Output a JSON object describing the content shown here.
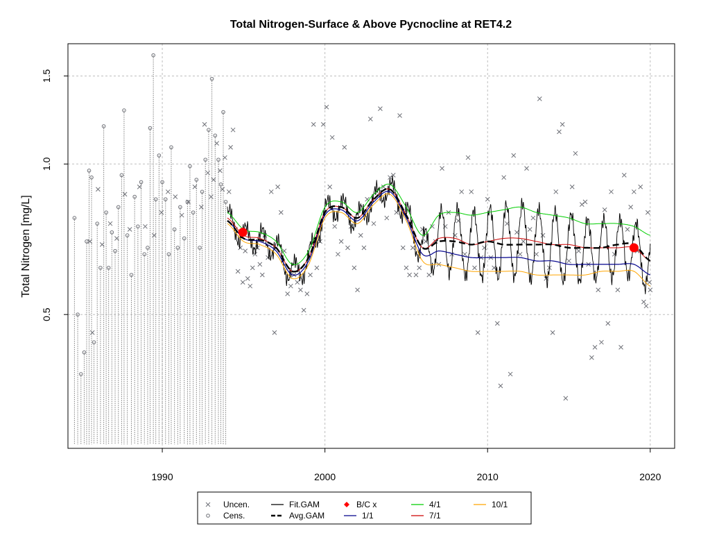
{
  "chart_data": {
    "type": "scatter",
    "title": "Total Nitrogen-Surface & Above Pycnocline at RET4.2",
    "ylabel": "Total Nitrogen [mg/L]",
    "xlabel": "",
    "y_scale": "log",
    "xlim": [
      1984.2,
      2021.5
    ],
    "ylim": [
      0.27,
      1.74
    ],
    "x_ticks": [
      1990,
      2000,
      2010,
      2020
    ],
    "x_tick_labels": [
      "1990",
      "2000",
      "2010",
      "2020"
    ],
    "y_ticks": [
      0.5,
      1.0,
      1.5
    ],
    "y_tick_labels": [
      "0.5",
      "1.0",
      "1.5"
    ],
    "grid": true,
    "legend": {
      "placement": "bottom",
      "entries": [
        {
          "label": "Uncen.",
          "symbol": "x",
          "color": "#6e7077"
        },
        {
          "label": "Cens.",
          "symbol": "o",
          "color": "#6e7077"
        },
        {
          "label": "Fit.GAM",
          "symbol": "line",
          "color": "#000000"
        },
        {
          "label": "Avg.GAM",
          "symbol": "dash",
          "color": "#000000"
        },
        {
          "label": "B/C x",
          "symbol": "diamond",
          "color": "#ff0000"
        },
        {
          "label": "1/1",
          "symbol": "line",
          "color": "#00008b"
        },
        {
          "label": "4/1",
          "symbol": "line",
          "color": "#00cd00"
        },
        {
          "label": "7/1",
          "symbol": "line",
          "color": "#cd0000"
        },
        {
          "label": "10/1",
          "symbol": "line",
          "color": "#ffa500"
        }
      ]
    },
    "colors": {
      "points": "#6e7077",
      "fit_gam": "#000000",
      "avg_gam": "#000000",
      "bc_points": "#ff0000",
      "s_1_1": "#00008b",
      "s_4_1": "#00cd00",
      "s_7_1": "#cd0000",
      "s_10_1": "#ffa500",
      "grid": "#bdbdbd"
    },
    "censored": {
      "lower": 0.275,
      "points": [
        [
          1984.6,
          0.78
        ],
        [
          1984.8,
          0.5
        ],
        [
          1985.0,
          0.38
        ],
        [
          1985.2,
          0.42
        ],
        [
          1985.35,
          0.7
        ],
        [
          1985.5,
          0.97
        ],
        [
          1985.65,
          0.94
        ],
        [
          1985.8,
          0.44
        ],
        [
          1986.0,
          0.76
        ],
        [
          1986.2,
          0.62
        ],
        [
          1986.4,
          1.19
        ],
        [
          1986.55,
          0.8
        ],
        [
          1986.7,
          0.62
        ],
        [
          1986.9,
          0.73
        ],
        [
          1987.1,
          0.67
        ],
        [
          1987.3,
          0.82
        ],
        [
          1987.5,
          0.95
        ],
        [
          1987.65,
          1.28
        ],
        [
          1987.85,
          0.72
        ],
        [
          1988.1,
          0.6
        ],
        [
          1988.3,
          0.86
        ],
        [
          1988.5,
          0.75
        ],
        [
          1988.7,
          0.92
        ],
        [
          1988.9,
          0.66
        ],
        [
          1989.1,
          0.68
        ],
        [
          1989.25,
          1.18
        ],
        [
          1989.45,
          1.65
        ],
        [
          1989.6,
          0.85
        ],
        [
          1989.8,
          1.04
        ],
        [
          1990.0,
          0.92
        ],
        [
          1990.2,
          0.85
        ],
        [
          1990.4,
          0.66
        ],
        [
          1990.55,
          1.08
        ],
        [
          1990.75,
          0.74
        ],
        [
          1990.95,
          0.68
        ],
        [
          1991.1,
          0.82
        ],
        [
          1991.35,
          0.71
        ],
        [
          1991.55,
          0.84
        ],
        [
          1991.7,
          0.99
        ],
        [
          1991.9,
          0.8
        ],
        [
          1992.1,
          0.93
        ],
        [
          1992.3,
          0.68
        ],
        [
          1992.45,
          0.88
        ],
        [
          1992.65,
          1.02
        ],
        [
          1992.85,
          1.17
        ],
        [
          1993.05,
          1.48
        ],
        [
          1993.25,
          1.14
        ],
        [
          1993.45,
          1.02
        ],
        [
          1993.6,
          0.91
        ],
        [
          1993.75,
          1.27
        ],
        [
          1993.9,
          0.84
        ]
      ]
    },
    "uncensored": [
      [
        1985.55,
        0.7
      ],
      [
        1985.7,
        0.46
      ],
      [
        1986.05,
        0.89
      ],
      [
        1986.3,
        0.69
      ],
      [
        1986.8,
        0.76
      ],
      [
        1987.2,
        0.71
      ],
      [
        1987.7,
        0.87
      ],
      [
        1988.0,
        0.74
      ],
      [
        1988.6,
        0.9
      ],
      [
        1988.95,
        0.75
      ],
      [
        1989.5,
        0.72
      ],
      [
        1989.95,
        0.8
      ],
      [
        1990.35,
        0.88
      ],
      [
        1990.8,
        0.86
      ],
      [
        1991.2,
        0.79
      ],
      [
        1991.6,
        0.84
      ],
      [
        1992.0,
        0.9
      ],
      [
        1992.4,
        0.82
      ],
      [
        1992.6,
        1.2
      ],
      [
        1992.8,
        0.96
      ],
      [
        1993.0,
        0.86
      ],
      [
        1993.15,
        0.93
      ],
      [
        1993.35,
        1.1
      ],
      [
        1993.55,
        0.97
      ],
      [
        1993.7,
        0.89
      ],
      [
        1993.85,
        1.03
      ],
      [
        1994.1,
        0.88
      ],
      [
        1994.2,
        1.08
      ],
      [
        1994.35,
        1.17
      ],
      [
        1994.5,
        0.74
      ],
      [
        1994.65,
        0.61
      ],
      [
        1994.8,
        0.68
      ],
      [
        1994.95,
        0.58
      ],
      [
        1995.1,
        0.67
      ],
      [
        1995.25,
        0.59
      ],
      [
        1995.4,
        0.57
      ],
      [
        1995.55,
        0.62
      ],
      [
        1995.7,
        0.66
      ],
      [
        1995.85,
        0.68
      ],
      [
        1996.0,
        0.63
      ],
      [
        1996.15,
        0.6
      ],
      [
        1996.3,
        0.72
      ],
      [
        1996.5,
        0.65
      ],
      [
        1996.7,
        0.88
      ],
      [
        1996.9,
        0.46
      ],
      [
        1997.1,
        0.9
      ],
      [
        1997.3,
        0.8
      ],
      [
        1997.5,
        0.67
      ],
      [
        1997.7,
        0.55
      ],
      [
        1997.9,
        0.57
      ],
      [
        1998.1,
        0.6
      ],
      [
        1998.3,
        0.58
      ],
      [
        1998.5,
        0.56
      ],
      [
        1998.7,
        0.51
      ],
      [
        1998.9,
        0.55
      ],
      [
        1999.1,
        0.6
      ],
      [
        1999.3,
        1.2
      ],
      [
        1999.5,
        0.62
      ],
      [
        1999.7,
        0.7
      ],
      [
        1999.9,
        1.2
      ],
      [
        2000.1,
        1.3
      ],
      [
        2000.3,
        0.9
      ],
      [
        2000.45,
        1.13
      ],
      [
        2000.6,
        0.75
      ],
      [
        2000.8,
        0.66
      ],
      [
        2001.0,
        0.7
      ],
      [
        2001.2,
        1.08
      ],
      [
        2001.4,
        0.68
      ],
      [
        2001.6,
        0.75
      ],
      [
        2001.8,
        0.62
      ],
      [
        2002.0,
        0.56
      ],
      [
        2002.2,
        0.72
      ],
      [
        2002.4,
        0.68
      ],
      [
        2002.6,
        0.85
      ],
      [
        2002.8,
        1.23
      ],
      [
        2003.0,
        0.76
      ],
      [
        2003.2,
        0.88
      ],
      [
        2003.4,
        1.29
      ],
      [
        2003.6,
        0.9
      ],
      [
        2003.8,
        0.78
      ],
      [
        2004.0,
        0.94
      ],
      [
        2004.2,
        0.95
      ],
      [
        2004.4,
        0.8
      ],
      [
        2004.6,
        1.25
      ],
      [
        2004.8,
        0.68
      ],
      [
        2005.0,
        0.62
      ],
      [
        2005.2,
        0.6
      ],
      [
        2005.4,
        0.68
      ],
      [
        2005.6,
        0.6
      ],
      [
        2005.8,
        0.62
      ],
      [
        2006.0,
        0.74
      ],
      [
        2006.2,
        0.7
      ],
      [
        2006.4,
        0.6
      ],
      [
        2006.6,
        0.75
      ],
      [
        2006.8,
        0.7
      ],
      [
        2007.0,
        0.63
      ],
      [
        2007.2,
        0.98
      ],
      [
        2007.4,
        0.75
      ],
      [
        2007.6,
        0.8
      ],
      [
        2007.8,
        0.66
      ],
      [
        2008.0,
        0.72
      ],
      [
        2008.2,
        0.77
      ],
      [
        2008.4,
        0.88
      ],
      [
        2008.6,
        0.66
      ],
      [
        2008.8,
        1.03
      ],
      [
        2009.0,
        0.88
      ],
      [
        2009.2,
        0.62
      ],
      [
        2009.4,
        0.46
      ],
      [
        2009.6,
        0.65
      ],
      [
        2009.8,
        0.68
      ],
      [
        2010.0,
        0.85
      ],
      [
        2010.2,
        0.65
      ],
      [
        2010.4,
        0.62
      ],
      [
        2010.6,
        0.48
      ],
      [
        2010.8,
        0.36
      ],
      [
        2011.0,
        0.94
      ],
      [
        2011.2,
        0.76
      ],
      [
        2011.4,
        0.38
      ],
      [
        2011.6,
        1.04
      ],
      [
        2011.8,
        0.73
      ],
      [
        2012.0,
        0.66
      ],
      [
        2012.2,
        0.7
      ],
      [
        2012.4,
        0.98
      ],
      [
        2012.6,
        0.74
      ],
      [
        2012.8,
        0.78
      ],
      [
        2013.0,
        0.66
      ],
      [
        2013.2,
        1.35
      ],
      [
        2013.4,
        0.72
      ],
      [
        2013.6,
        0.59
      ],
      [
        2013.8,
        0.62
      ],
      [
        2014.0,
        0.46
      ],
      [
        2014.2,
        0.88
      ],
      [
        2014.4,
        1.16
      ],
      [
        2014.6,
        1.2
      ],
      [
        2014.8,
        0.34
      ],
      [
        2015.0,
        0.64
      ],
      [
        2015.2,
        0.9
      ],
      [
        2015.4,
        1.05
      ],
      [
        2015.6,
        0.67
      ],
      [
        2015.8,
        0.83
      ],
      [
        2016.0,
        0.84
      ],
      [
        2016.2,
        0.63
      ],
      [
        2016.4,
        0.41
      ],
      [
        2016.6,
        0.43
      ],
      [
        2016.8,
        0.56
      ],
      [
        2017.0,
        0.44
      ],
      [
        2017.2,
        0.81
      ],
      [
        2017.4,
        0.48
      ],
      [
        2017.6,
        0.88
      ],
      [
        2017.8,
        0.66
      ],
      [
        2018.0,
        0.56
      ],
      [
        2018.2,
        0.43
      ],
      [
        2018.4,
        0.95
      ],
      [
        2018.6,
        0.74
      ],
      [
        2018.8,
        0.82
      ],
      [
        2019.0,
        0.88
      ],
      [
        2019.2,
        0.67
      ],
      [
        2019.4,
        0.9
      ],
      [
        2019.6,
        0.53
      ],
      [
        2019.75,
        0.52
      ],
      [
        2019.85,
        0.8
      ],
      [
        2019.95,
        0.58
      ],
      [
        2020.0,
        0.56
      ]
    ],
    "bc_points": [
      [
        1994.95,
        0.73
      ],
      [
        2019.0,
        0.68
      ]
    ],
    "seasonal_curves": {
      "x": [
        1994.0,
        1995.0,
        1996.0,
        1997.0,
        1998.0,
        1999.0,
        2000.0,
        2001.0,
        2002.0,
        2003.0,
        2004.0,
        2005.0,
        2006.0,
        2007.0,
        2008.0,
        2009.0,
        2010.0,
        2011.0,
        2012.0,
        2013.0,
        2014.0,
        2015.0,
        2016.0,
        2017.0,
        2018.0,
        2019.0,
        2020.0
      ],
      "s_4_1": [
        0.8,
        0.74,
        0.73,
        0.7,
        0.63,
        0.67,
        0.82,
        0.84,
        0.8,
        0.87,
        0.91,
        0.82,
        0.72,
        0.79,
        0.8,
        0.79,
        0.8,
        0.81,
        0.82,
        0.8,
        0.79,
        0.78,
        0.76,
        0.76,
        0.76,
        0.75,
        0.72
      ],
      "s_7_1": [
        0.78,
        0.72,
        0.71,
        0.68,
        0.61,
        0.65,
        0.8,
        0.82,
        0.78,
        0.85,
        0.89,
        0.79,
        0.68,
        0.71,
        0.71,
        0.69,
        0.7,
        0.71,
        0.71,
        0.7,
        0.69,
        0.69,
        0.68,
        0.68,
        0.68,
        0.68,
        0.64
      ],
      "s_1_1": [
        0.77,
        0.71,
        0.7,
        0.67,
        0.6,
        0.64,
        0.79,
        0.81,
        0.77,
        0.84,
        0.88,
        0.78,
        0.66,
        0.67,
        0.66,
        0.65,
        0.65,
        0.65,
        0.65,
        0.64,
        0.64,
        0.63,
        0.63,
        0.63,
        0.63,
        0.63,
        0.6
      ],
      "s_10_1": [
        0.76,
        0.7,
        0.69,
        0.66,
        0.59,
        0.63,
        0.78,
        0.8,
        0.76,
        0.83,
        0.87,
        0.77,
        0.64,
        0.63,
        0.62,
        0.61,
        0.61,
        0.61,
        0.61,
        0.6,
        0.6,
        0.6,
        0.6,
        0.61,
        0.61,
        0.61,
        0.57
      ],
      "avg_gam": [
        0.77,
        0.71,
        0.705,
        0.68,
        0.61,
        0.65,
        0.8,
        0.82,
        0.78,
        0.85,
        0.89,
        0.79,
        0.68,
        0.7,
        0.7,
        0.69,
        0.7,
        0.69,
        0.69,
        0.69,
        0.69,
        0.68,
        0.68,
        0.68,
        0.69,
        0.69,
        0.64
      ]
    },
    "fit_gam": {
      "x_start": 1994.0,
      "x_end": 2020.0,
      "cycles_per_year": 1,
      "amplitude_log": 0.075
    }
  }
}
